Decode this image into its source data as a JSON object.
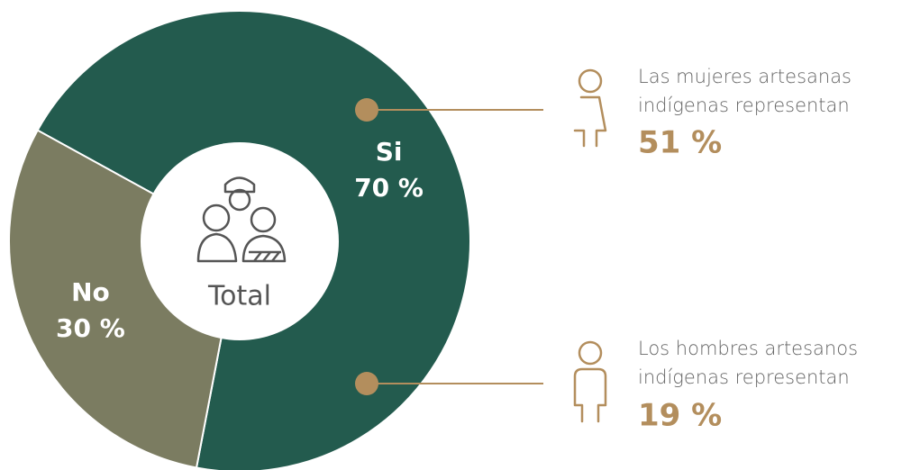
{
  "chart_data": {
    "type": "pie",
    "donut": true,
    "categories": [
      "Si",
      "No"
    ],
    "values": [
      70,
      30
    ],
    "value_labels": [
      "70 %",
      "30 %"
    ],
    "colors": [
      "#235b4e",
      "#7b7c61"
    ],
    "center_label": "Total",
    "annotations": [
      {
        "lines": [
          "Las mujeres artesanas",
          "indígenas representan"
        ],
        "label": "51 %"
      },
      {
        "lines": [
          "Los hombres artesanos",
          "indígenas representan"
        ],
        "label": "19 %"
      }
    ]
  }
}
